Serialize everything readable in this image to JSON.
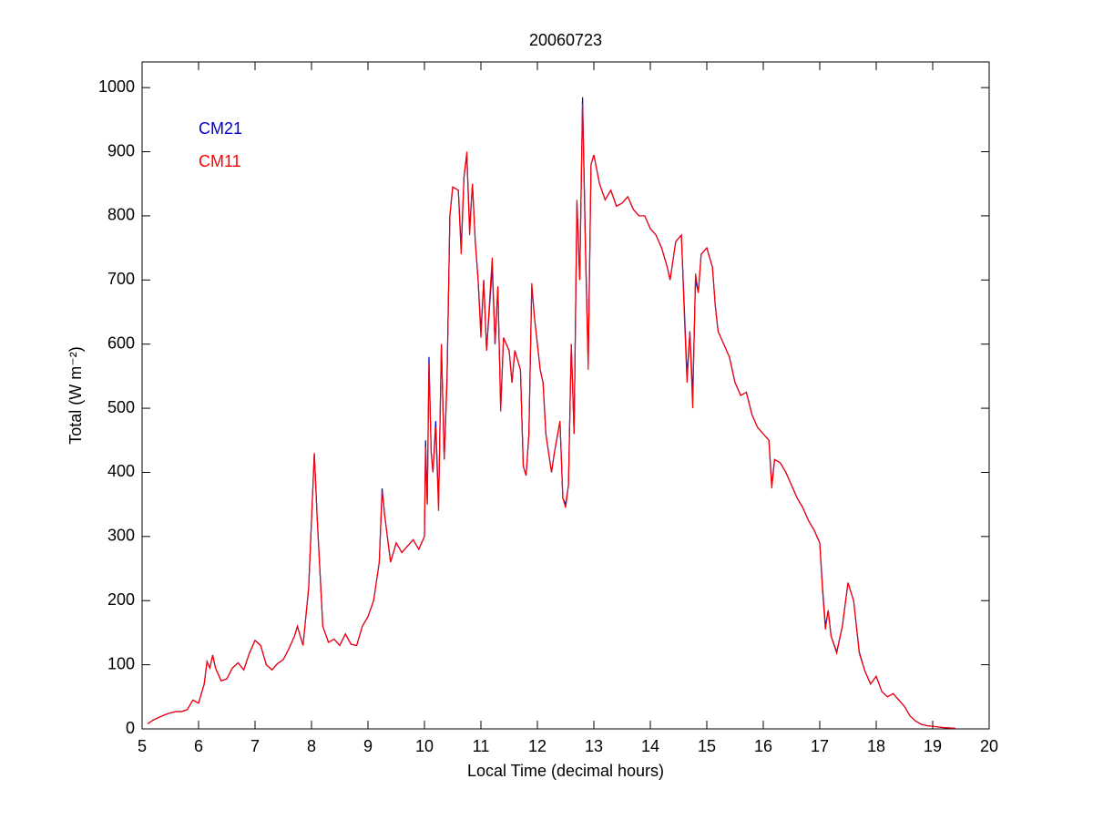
{
  "chart_data": {
    "type": "line",
    "title": "20060723",
    "xlabel": "Local Time (decimal hours)",
    "ylabel": "Total (W m⁻²)",
    "xlim": [
      5,
      20
    ],
    "xticks": [
      5,
      6,
      7,
      8,
      9,
      10,
      11,
      12,
      13,
      14,
      15,
      16,
      17,
      18,
      19,
      20
    ],
    "ylim": [
      0,
      1040
    ],
    "yticks": [
      0,
      100,
      200,
      300,
      400,
      500,
      600,
      700,
      800,
      900,
      1000
    ],
    "grid": false,
    "legend": "upper left",
    "x": [
      5.1,
      5.2,
      5.3,
      5.4,
      5.5,
      5.6,
      5.7,
      5.8,
      5.9,
      6.0,
      6.1,
      6.15,
      6.2,
      6.25,
      6.3,
      6.4,
      6.5,
      6.6,
      6.7,
      6.8,
      6.9,
      7.0,
      7.1,
      7.2,
      7.3,
      7.4,
      7.5,
      7.6,
      7.7,
      7.75,
      7.85,
      7.95,
      8.05,
      8.1,
      8.2,
      8.3,
      8.4,
      8.5,
      8.6,
      8.7,
      8.8,
      8.9,
      9.0,
      9.1,
      9.2,
      9.25,
      9.3,
      9.4,
      9.5,
      9.6,
      9.7,
      9.8,
      9.9,
      10.0,
      10.02,
      10.05,
      10.08,
      10.12,
      10.15,
      10.2,
      10.25,
      10.3,
      10.35,
      10.4,
      10.45,
      10.5,
      10.6,
      10.65,
      10.7,
      10.75,
      10.8,
      10.85,
      10.9,
      10.95,
      11.0,
      11.05,
      11.1,
      11.2,
      11.25,
      11.3,
      11.35,
      11.4,
      11.5,
      11.55,
      11.6,
      11.7,
      11.75,
      11.8,
      11.85,
      11.9,
      11.95,
      12.05,
      12.1,
      12.15,
      12.25,
      12.3,
      12.4,
      12.45,
      12.5,
      12.55,
      12.6,
      12.65,
      12.7,
      12.75,
      12.8,
      12.85,
      12.9,
      12.95,
      13.0,
      13.1,
      13.2,
      13.3,
      13.4,
      13.5,
      13.6,
      13.7,
      13.8,
      13.9,
      14.0,
      14.1,
      14.2,
      14.3,
      14.35,
      14.45,
      14.55,
      14.6,
      14.65,
      14.7,
      14.75,
      14.8,
      14.85,
      14.9,
      15.0,
      15.1,
      15.15,
      15.2,
      15.3,
      15.4,
      15.5,
      15.6,
      15.7,
      15.8,
      15.9,
      16.0,
      16.1,
      16.15,
      16.2,
      16.3,
      16.4,
      16.5,
      16.6,
      16.7,
      16.8,
      16.9,
      17.0,
      17.05,
      17.1,
      17.15,
      17.2,
      17.3,
      17.4,
      17.5,
      17.6,
      17.7,
      17.8,
      17.9,
      18.0,
      18.1,
      18.2,
      18.3,
      18.4,
      18.5,
      18.6,
      18.7,
      18.8,
      18.9,
      19.0,
      19.2,
      19.4
    ],
    "series": [
      {
        "name": "CM21",
        "color": "#0000cc",
        "values": [
          8,
          14,
          18,
          22,
          25,
          27,
          27,
          30,
          45,
          40,
          70,
          105,
          95,
          115,
          95,
          75,
          78,
          95,
          103,
          92,
          118,
          138,
          130,
          100,
          92,
          102,
          108,
          125,
          145,
          160,
          130,
          220,
          430,
          330,
          160,
          135,
          140,
          130,
          148,
          132,
          130,
          160,
          175,
          200,
          260,
          375,
          330,
          260,
          290,
          275,
          285,
          295,
          280,
          300,
          450,
          350,
          580,
          430,
          400,
          480,
          350,
          600,
          420,
          550,
          800,
          845,
          840,
          750,
          860,
          895,
          780,
          850,
          760,
          700,
          620,
          700,
          590,
          720,
          600,
          690,
          500,
          610,
          590,
          540,
          590,
          560,
          410,
          395,
          460,
          690,
          640,
          560,
          540,
          460,
          400,
          430,
          480,
          360,
          350,
          380,
          600,
          460,
          820,
          700,
          985,
          760,
          570,
          880,
          895,
          850,
          825,
          840,
          815,
          820,
          830,
          810,
          800,
          800,
          780,
          770,
          750,
          720,
          700,
          760,
          770,
          660,
          550,
          620,
          520,
          700,
          680,
          740,
          750,
          720,
          660,
          620,
          600,
          580,
          540,
          520,
          525,
          490,
          470,
          460,
          450,
          380,
          420,
          415,
          400,
          380,
          360,
          345,
          325,
          310,
          290,
          220,
          160,
          185,
          145,
          120,
          160,
          228,
          200,
          120,
          90,
          70,
          82,
          58,
          50,
          55,
          45,
          35,
          20,
          12,
          7,
          5,
          4,
          2,
          1
        ]
      },
      {
        "name": "CM11",
        "color": "#ff0000",
        "values": [
          8,
          14,
          18,
          22,
          25,
          27,
          27,
          30,
          45,
          40,
          70,
          105,
          95,
          115,
          95,
          75,
          78,
          95,
          103,
          92,
          118,
          138,
          130,
          100,
          92,
          102,
          108,
          125,
          145,
          160,
          130,
          220,
          430,
          330,
          160,
          135,
          140,
          130,
          148,
          132,
          130,
          160,
          175,
          200,
          260,
          370,
          330,
          260,
          290,
          275,
          285,
          295,
          280,
          300,
          440,
          350,
          570,
          430,
          400,
          470,
          340,
          600,
          420,
          540,
          800,
          845,
          840,
          740,
          860,
          900,
          770,
          850,
          760,
          700,
          610,
          700,
          590,
          735,
          600,
          690,
          495,
          610,
          590,
          540,
          590,
          560,
          410,
          395,
          460,
          695,
          640,
          560,
          540,
          460,
          400,
          430,
          480,
          360,
          345,
          380,
          600,
          460,
          825,
          700,
          975,
          750,
          560,
          880,
          895,
          850,
          825,
          840,
          815,
          820,
          830,
          810,
          800,
          800,
          780,
          770,
          750,
          720,
          700,
          760,
          770,
          650,
          540,
          620,
          500,
          710,
          680,
          740,
          750,
          720,
          660,
          620,
          600,
          580,
          540,
          520,
          525,
          490,
          470,
          460,
          450,
          375,
          420,
          415,
          400,
          380,
          360,
          345,
          325,
          310,
          290,
          215,
          155,
          185,
          145,
          118,
          160,
          228,
          200,
          118,
          90,
          70,
          82,
          58,
          50,
          55,
          45,
          35,
          20,
          12,
          7,
          5,
          4,
          2,
          1
        ]
      }
    ]
  }
}
